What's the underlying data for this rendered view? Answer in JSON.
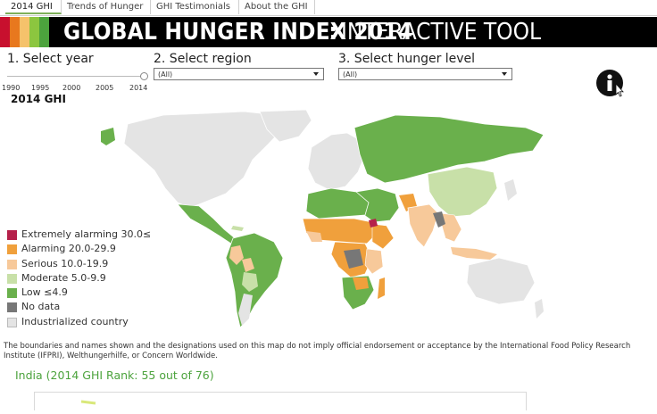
{
  "tabs": [
    {
      "label": "2014 GHI",
      "active": true
    },
    {
      "label": "Trends of Hunger",
      "active": false
    },
    {
      "label": "GHI Testimonials",
      "active": false
    },
    {
      "label": "About the GHI",
      "active": false
    }
  ],
  "banner": {
    "title": "GLOBAL HUNGER INDEX 2014",
    "separator": ":",
    "subtitle": "INTERACTIVE TOOL",
    "stripe_colors": [
      "#c8102e",
      "#e8781e",
      "#f5c26b",
      "#8cc63f",
      "#4ca33d"
    ]
  },
  "filters": {
    "year": {
      "label": "1. Select year",
      "ticks": [
        "1990",
        "1995",
        "2000",
        "2005",
        "2014"
      ],
      "selected": "2014"
    },
    "region": {
      "label": "2. Select region",
      "value": "(All)"
    },
    "hunger_level": {
      "label": "3. Select hunger level",
      "value": "(All)"
    }
  },
  "map": {
    "title": "2014 GHI",
    "colors": {
      "extremely_alarming": "#b5204a",
      "alarming": "#f0a03c",
      "serious": "#f7c99a",
      "moderate": "#c8e0a8",
      "low": "#6ab04c",
      "no_data": "#777777",
      "industrialized": "#e4e4e4",
      "ocean": "#ffffff"
    }
  },
  "legend": [
    {
      "label": "Extremely alarming 30.0≤",
      "color": "#b5204a"
    },
    {
      "label": "Alarming 20.0-29.9",
      "color": "#f0a03c"
    },
    {
      "label": "Serious 10.0-19.9",
      "color": "#f7c99a"
    },
    {
      "label": "Moderate 5.0-9.9",
      "color": "#c8e0a8"
    },
    {
      "label": "Low ≤4.9",
      "color": "#6ab04c"
    },
    {
      "label": "No data",
      "color": "#777777"
    },
    {
      "label": "Industrialized country",
      "color": "#e4e4e4"
    }
  ],
  "disclaimer": "The boundaries and names shown and the designations used on this map do not imply official endorsement or acceptance by the International Food Policy Research Institute (IFPRI), Welthungerhilfe, or Concern Worldwide.",
  "country_detail": {
    "title": "India (2014 GHI Rank: 55 out of 76)"
  },
  "icons": {
    "info": "info-icon"
  }
}
